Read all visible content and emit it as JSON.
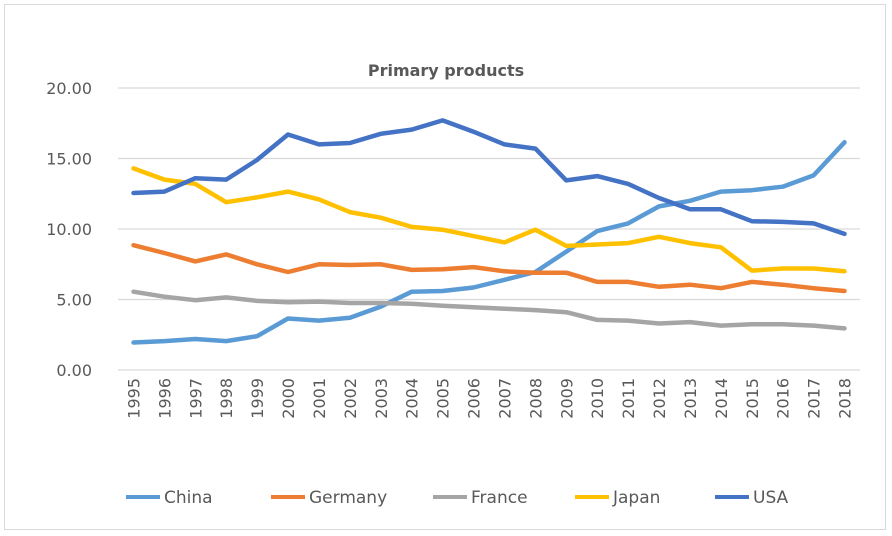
{
  "chart_data": {
    "type": "line",
    "title": "Primary products",
    "xlabel": "",
    "ylabel": "",
    "ylim": [
      0,
      20
    ],
    "yticks": [
      "0.00",
      "5.00",
      "10.00",
      "15.00",
      "20.00"
    ],
    "grid": true,
    "legend_position": "bottom",
    "categories": [
      "1995",
      "1996",
      "1997",
      "1998",
      "1999",
      "2000",
      "2001",
      "2002",
      "2003",
      "2004",
      "2005",
      "2006",
      "2007",
      "2008",
      "2009",
      "2010",
      "2011",
      "2012",
      "2013",
      "2014",
      "2015",
      "2016",
      "2017",
      "2018"
    ],
    "series": [
      {
        "name": "China",
        "color": "#5b9bd5",
        "values": [
          1.95,
          2.05,
          2.2,
          2.05,
          2.4,
          3.65,
          3.5,
          3.7,
          4.5,
          5.55,
          5.6,
          5.85,
          6.4,
          6.95,
          8.4,
          9.85,
          10.4,
          11.6,
          12.0,
          12.65,
          12.75,
          13.0,
          13.8,
          16.15
        ]
      },
      {
        "name": "Germany",
        "color": "#ed7d31",
        "values": [
          8.85,
          8.3,
          7.7,
          8.2,
          7.5,
          6.95,
          7.5,
          7.45,
          7.5,
          7.1,
          7.15,
          7.3,
          7.0,
          6.9,
          6.9,
          6.25,
          6.25,
          5.9,
          6.05,
          5.8,
          6.25,
          6.05,
          5.8,
          5.6
        ]
      },
      {
        "name": "France",
        "color": "#a5a5a5",
        "values": [
          5.55,
          5.2,
          4.95,
          5.15,
          4.9,
          4.8,
          4.85,
          4.75,
          4.75,
          4.7,
          4.55,
          4.45,
          4.35,
          4.25,
          4.1,
          3.55,
          3.5,
          3.3,
          3.4,
          3.15,
          3.25,
          3.25,
          3.15,
          2.95
        ]
      },
      {
        "name": "Japan",
        "color": "#ffc000",
        "values": [
          14.3,
          13.5,
          13.2,
          11.9,
          12.25,
          12.65,
          12.1,
          11.2,
          10.8,
          10.15,
          9.95,
          9.5,
          9.05,
          9.95,
          8.8,
          8.9,
          9.0,
          9.45,
          9.0,
          8.7,
          7.05,
          7.2,
          7.2,
          7.0
        ]
      },
      {
        "name": "USA",
        "color": "#4472c4",
        "values": [
          12.55,
          12.65,
          13.6,
          13.5,
          14.9,
          16.7,
          16.0,
          16.1,
          16.75,
          17.05,
          17.7,
          16.9,
          16.0,
          15.7,
          13.45,
          13.75,
          13.2,
          12.2,
          11.4,
          11.4,
          10.55,
          10.5,
          10.4,
          9.65
        ]
      }
    ]
  }
}
